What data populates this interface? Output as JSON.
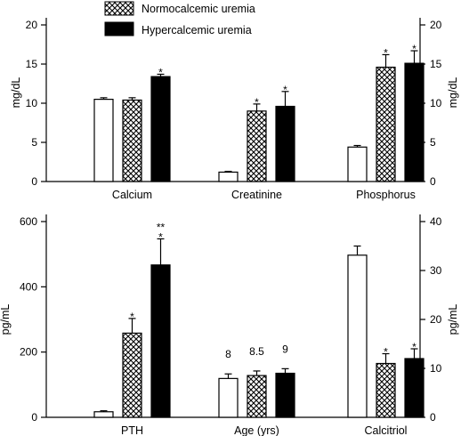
{
  "legend": {
    "entries": [
      {
        "name": "Normocalcemic uremia",
        "fill": "hatch"
      },
      {
        "name": "Hypercalcemic uremia",
        "fill": "black"
      }
    ]
  },
  "colors": {
    "bar_fill_solid": "#000000",
    "bar_fill_open": "#ffffff",
    "stroke": "#000000"
  },
  "chart_data": [
    {
      "type": "bar",
      "title": "",
      "categories": [
        "Calcium",
        "Creatinine",
        "Phosphorus"
      ],
      "series": [
        {
          "values": [
            10.5,
            1.2,
            4.4
          ],
          "errors": [
            0.2,
            0.1,
            0.2
          ],
          "stars": [
            "",
            "",
            ""
          ]
        },
        {
          "name": "Normocalcemic uremia",
          "values": [
            10.4,
            9.0,
            14.6
          ],
          "errors": [
            0.3,
            0.9,
            1.6
          ],
          "stars": [
            "",
            "*",
            "*"
          ]
        },
        {
          "name": "Hypercalcemic uremia",
          "values": [
            13.4,
            9.6,
            15.1
          ],
          "errors": [
            0.3,
            1.9,
            1.6
          ],
          "stars": [
            "*",
            "*",
            "*"
          ]
        }
      ],
      "ylabel_left": "mg/dL",
      "ylabel_right": "mg/dL",
      "ylim": [
        0,
        20
      ],
      "yticks": [
        "0",
        "5",
        "10",
        "15",
        "20"
      ],
      "grid": false
    },
    {
      "type": "bar",
      "title": "",
      "categories": [
        "PTH",
        "Age (yrs)",
        "Calcitriol"
      ],
      "series": [
        {
          "values": [
            17,
            119,
            497
          ],
          "errors": [
            3,
            14,
            28
          ],
          "stars": [
            "",
            "",
            ""
          ],
          "labels": [
            "",
            "8",
            ""
          ]
        },
        {
          "name": "Normocalcemic uremia",
          "values": [
            258,
            128,
            165
          ],
          "errors": [
            45,
            14,
            30
          ],
          "stars": [
            "*",
            "",
            "*"
          ],
          "labels": [
            "",
            "8.5",
            ""
          ]
        },
        {
          "name": "Hypercalcemic uremia",
          "values": [
            467,
            135,
            180
          ],
          "errors": [
            80,
            14,
            30
          ],
          "stars": [
            "**\n*",
            "",
            "*"
          ],
          "labels": [
            "",
            "9",
            ""
          ]
        }
      ],
      "ylabel_left": "pg/mL",
      "ylabel_right": "pg/mL",
      "ylim_left": [
        0,
        600
      ],
      "yticks_left": [
        "0",
        "200",
        "400",
        "600"
      ],
      "ylim_right": [
        0,
        40
      ],
      "yticks_right": [
        "0",
        "10",
        "20",
        "30",
        "40"
      ],
      "grid": false
    }
  ]
}
